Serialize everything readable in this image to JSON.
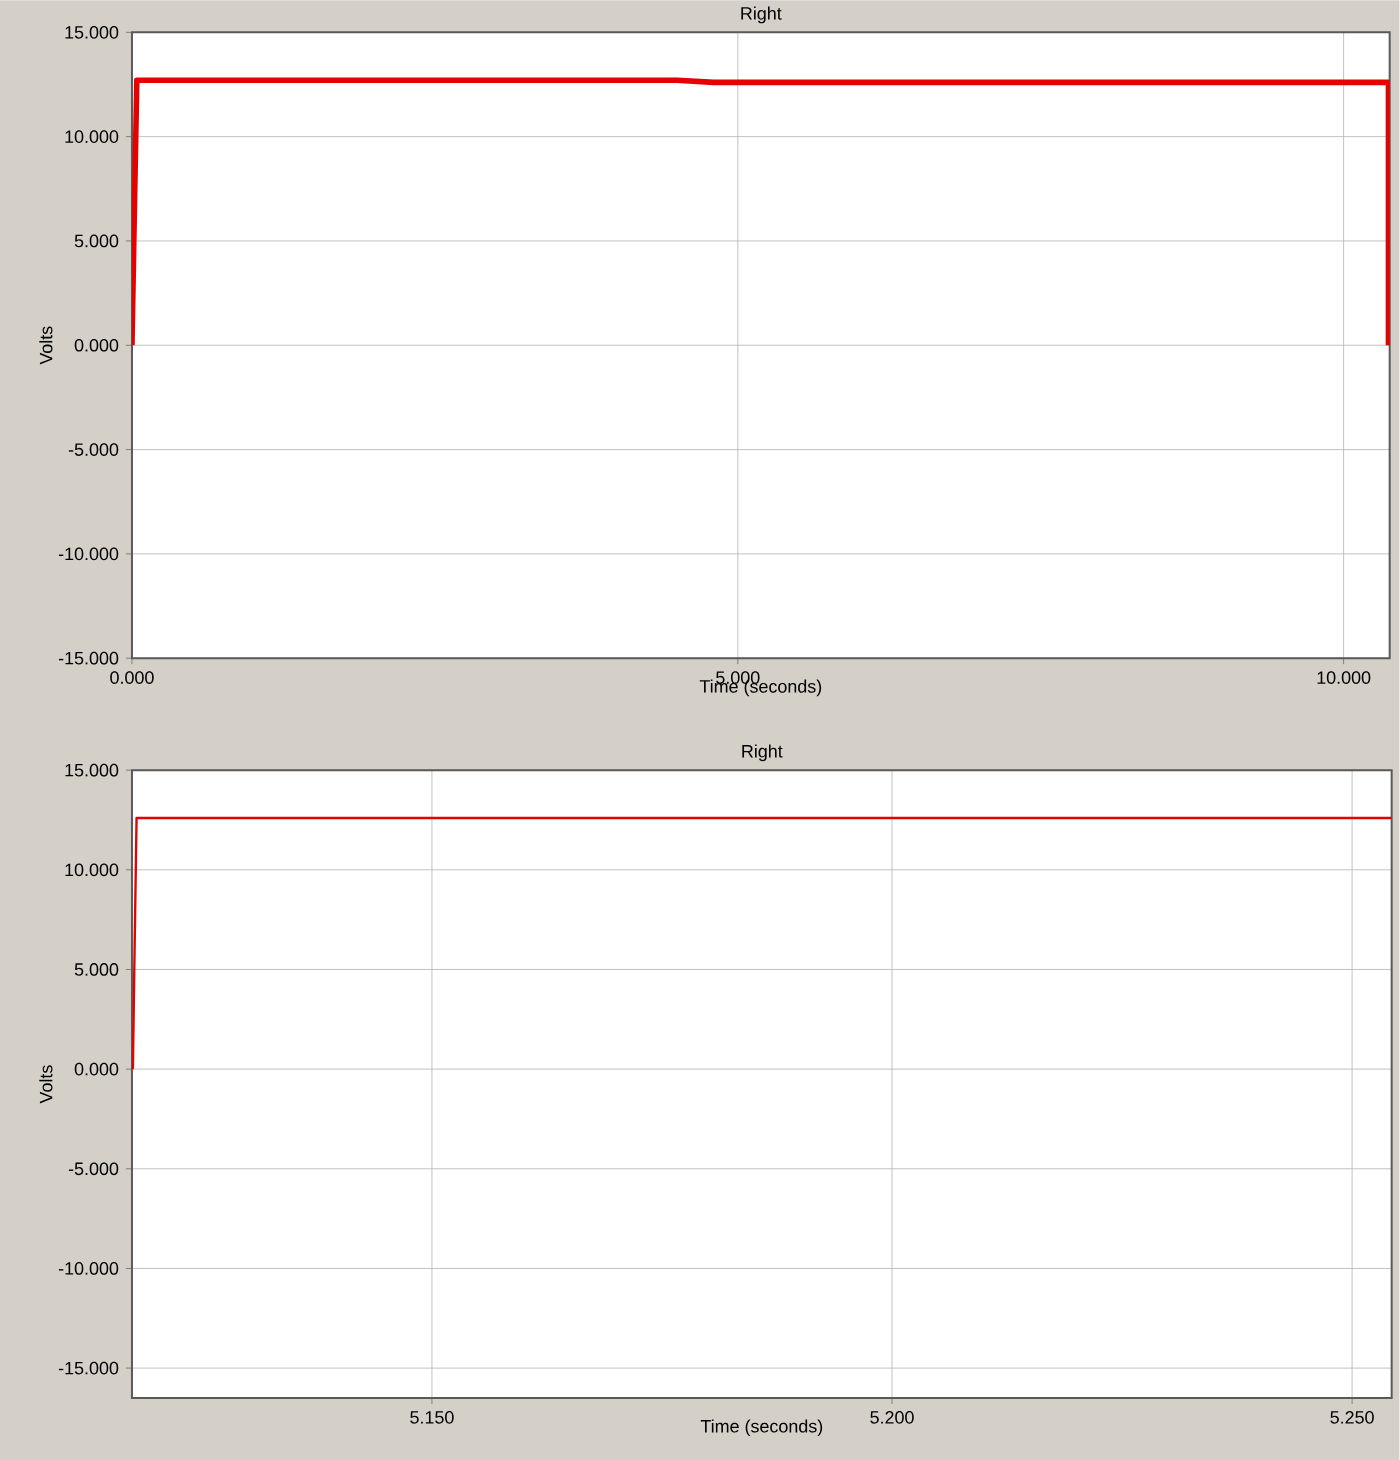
{
  "chart_data": [
    {
      "type": "line",
      "title": "Right",
      "xlabel": "Time (seconds)",
      "ylabel": "Volts",
      "xlim": [
        0,
        10.38
      ],
      "ylim": [
        -15,
        15
      ],
      "xticks": [
        {
          "value": 0,
          "label": "0.000"
        },
        {
          "value": 5,
          "label": "5.000"
        },
        {
          "value": 10,
          "label": "10.000"
        }
      ],
      "yticks": [
        {
          "value": -15,
          "label": "-15.000"
        },
        {
          "value": -10,
          "label": "-10.000"
        },
        {
          "value": -5,
          "label": "-5.000"
        },
        {
          "value": 0,
          "label": "0.000"
        },
        {
          "value": 5,
          "label": "5.000"
        },
        {
          "value": 10,
          "label": "10.000"
        },
        {
          "value": 15,
          "label": "15.000"
        }
      ],
      "grid": true,
      "series": [
        {
          "color": "#e60000",
          "x": [
            0,
            0.02,
            0.04,
            2.0,
            4.5,
            4.8,
            6.0,
            8.0,
            10.3,
            10.37,
            10.37
          ],
          "values": [
            0,
            6.5,
            12.7,
            12.7,
            12.7,
            12.6,
            12.6,
            12.6,
            12.6,
            12.6,
            0
          ]
        }
      ]
    },
    {
      "type": "line",
      "title": "Right",
      "xlabel": "Time (seconds)",
      "ylabel": "Volts",
      "xlim": [
        5.1174,
        5.2543
      ],
      "ylim": [
        -16.5,
        15
      ],
      "xticks": [
        {
          "value": 5.15,
          "label": "5.150"
        },
        {
          "value": 5.2,
          "label": "5.200"
        },
        {
          "value": 5.25,
          "label": "5.250"
        }
      ],
      "yticks": [
        {
          "value": -15,
          "label": "-15.000"
        },
        {
          "value": -10,
          "label": "-10.000"
        },
        {
          "value": -5,
          "label": "-5.000"
        },
        {
          "value": 0,
          "label": "0.000"
        },
        {
          "value": 5,
          "label": "5.000"
        },
        {
          "value": 10,
          "label": "10.000"
        },
        {
          "value": 15,
          "label": "15.000"
        }
      ],
      "grid": true,
      "series": [
        {
          "color": "#e60000",
          "x": [
            5.1175,
            5.1177,
            5.1179,
            5.13,
            5.15,
            5.17,
            5.19,
            5.21,
            5.23,
            5.2543
          ],
          "values": [
            0,
            6.5,
            12.6,
            12.6,
            12.6,
            12.6,
            12.6,
            12.6,
            12.6,
            12.6
          ]
        }
      ]
    }
  ]
}
